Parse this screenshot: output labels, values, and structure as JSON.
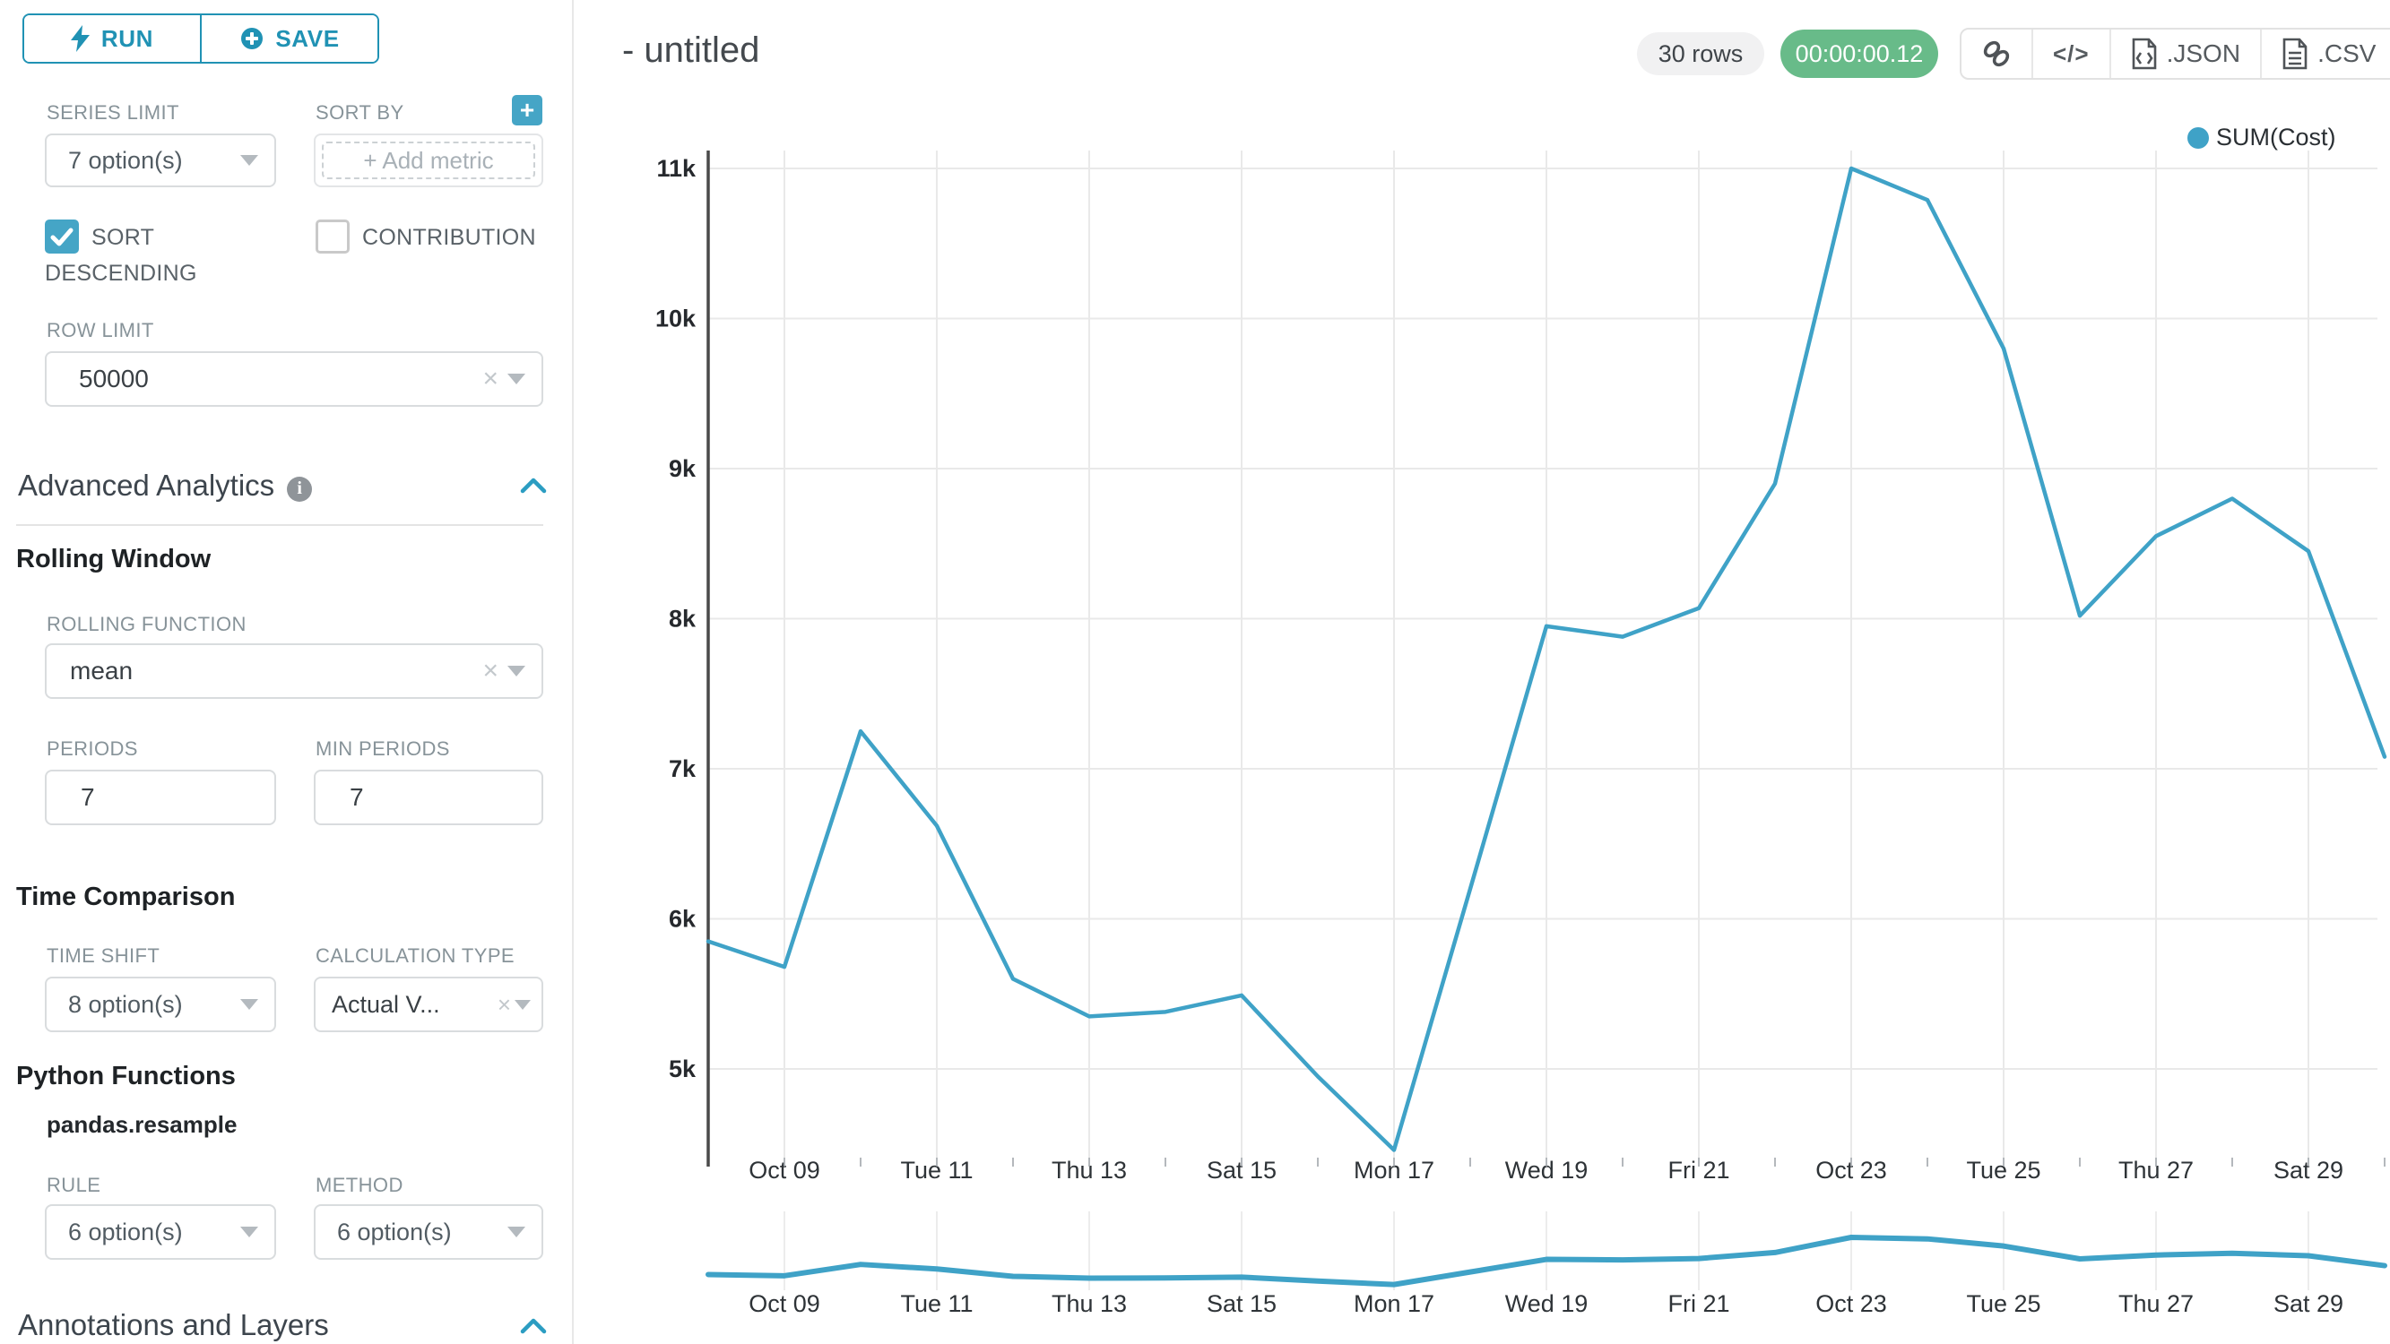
{
  "sidebar": {
    "run_label": "RUN",
    "save_label": "SAVE",
    "series_limit": {
      "label": "SERIES LIMIT",
      "value": "7 option(s)"
    },
    "sort_by": {
      "label": "SORT BY",
      "placeholder": "+ Add metric",
      "add_button": "+"
    },
    "sort_descending": {
      "label_line1": "SORT",
      "label_line2": "DESCENDING",
      "checked": true
    },
    "contribution": {
      "label": "CONTRIBUTION",
      "checked": false
    },
    "row_limit": {
      "label": "ROW LIMIT",
      "value": "50000"
    },
    "advanced_analytics_title": "Advanced Analytics",
    "rolling_window": {
      "title": "Rolling Window",
      "rolling_function": {
        "label": "ROLLING FUNCTION",
        "value": "mean"
      },
      "periods": {
        "label": "PERIODS",
        "value": "7"
      },
      "min_periods": {
        "label": "MIN PERIODS",
        "value": "7"
      }
    },
    "time_comparison": {
      "title": "Time Comparison",
      "time_shift": {
        "label": "TIME SHIFT",
        "value": "8 option(s)"
      },
      "calculation_type": {
        "label": "CALCULATION TYPE",
        "value": "Actual V..."
      }
    },
    "python_functions": {
      "title": "Python Functions",
      "subtitle": "pandas.resample",
      "rule": {
        "label": "RULE",
        "value": "6 option(s)"
      },
      "method": {
        "label": "METHOD",
        "value": "6 option(s)"
      }
    },
    "annotations_title": "Annotations and Layers"
  },
  "header": {
    "title": "- untitled",
    "rows_badge": "30 rows",
    "timer_badge": "00:00:00.12",
    "code_label": "</>",
    "json_label": ".JSON",
    "csv_label": ".CSV"
  },
  "icons": {
    "clear": "×"
  },
  "colors": {
    "accent": "#2092b4",
    "line": "#3fa2c7",
    "success_badge": "#68bb89",
    "checkbox": "#45a5c6",
    "grid": "#e9e9e9",
    "axis": "#4a4a4a"
  },
  "chart_data": {
    "type": "line",
    "title": "",
    "legend": [
      {
        "name": "SUM(Cost)",
        "color": "#3fa2c7"
      }
    ],
    "x": [
      "Oct 08",
      "Oct 09",
      "Oct 10",
      "Oct 11",
      "Oct 12",
      "Oct 13",
      "Oct 14",
      "Oct 15",
      "Oct 16",
      "Oct 17",
      "Oct 18",
      "Oct 19",
      "Oct 20",
      "Oct 21",
      "Oct 22",
      "Oct 23",
      "Oct 24",
      "Oct 25",
      "Oct 26",
      "Oct 27",
      "Oct 28",
      "Oct 29",
      "Oct 30"
    ],
    "series": [
      {
        "name": "SUM(Cost)",
        "values": [
          5850,
          5680,
          7250,
          6620,
          5600,
          5350,
          5380,
          5490,
          4950,
          4460,
          6200,
          7950,
          7880,
          8070,
          8900,
          11000,
          10790,
          9800,
          8020,
          8550,
          8800,
          8450,
          7080
        ]
      }
    ],
    "ylim": [
      4300,
      11000
    ],
    "y_ticks": [
      {
        "label": "5k",
        "value": 5000
      },
      {
        "label": "6k",
        "value": 6000
      },
      {
        "label": "7k",
        "value": 7000
      },
      {
        "label": "8k",
        "value": 8000
      },
      {
        "label": "9k",
        "value": 9000
      },
      {
        "label": "10k",
        "value": 10000
      },
      {
        "label": "11k",
        "value": 11000
      }
    ],
    "x_tick_indices": [
      1,
      3,
      5,
      7,
      9,
      11,
      13,
      15,
      17,
      19,
      21
    ],
    "x_tick_labels": [
      "Oct 09",
      "Tue 11",
      "Thu 13",
      "Sat 15",
      "Mon 17",
      "Wed 19",
      "Fri 21",
      "Oct 23",
      "Tue 25",
      "Thu 27",
      "Sat 29"
    ],
    "grid": true,
    "legend_position": "top-right",
    "mini_preview": true
  }
}
